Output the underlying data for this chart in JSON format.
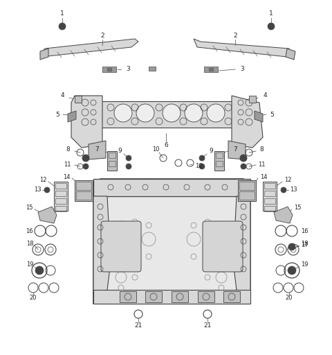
{
  "bg_color": "#ffffff",
  "fig_width": 4.8,
  "fig_height": 5.12,
  "dpi": 100,
  "line_color": "#444444",
  "label_color": "#222222",
  "fill_light": "#d8d8d8",
  "fill_med": "#c0c0c0",
  "fill_dark": "#999999"
}
